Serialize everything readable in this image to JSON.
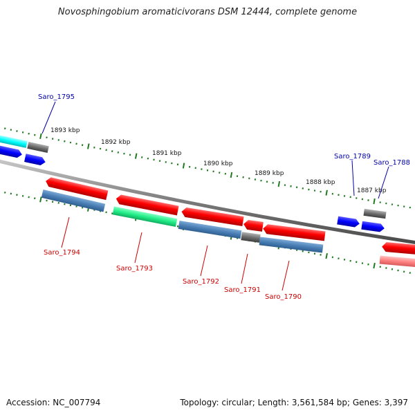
{
  "title": "Novosphingobium aromaticivorans DSM 12444, complete genome",
  "footer": {
    "accession": "Accession: NC_007794",
    "summary": "Topology: circular; Length: 3,561,584 bp; Genes: 3,397"
  },
  "colors": {
    "plus_label": "#0000aa",
    "minus_label": "#cc0000",
    "backbone": "#8a8a8a",
    "tick": "#1f7a1f"
  },
  "kbp_labels": [
    "1893 kbp",
    "1892 kbp",
    "1891 kbp",
    "1890 kbp",
    "1889 kbp",
    "1888 kbp",
    "1887 kbp"
  ],
  "gene_labels": {
    "plus": [
      "Saro_1795",
      "Saro_1789",
      "Saro_1788"
    ],
    "minus": [
      "Saro_1794",
      "Saro_1793",
      "Saro_1792",
      "Saro_1791",
      "Saro_1790"
    ]
  }
}
